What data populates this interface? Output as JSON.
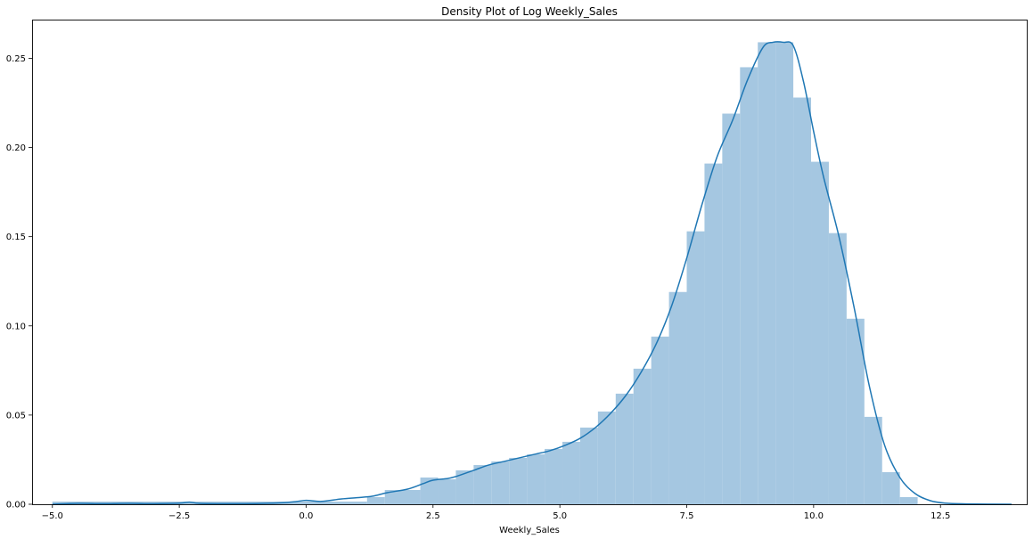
{
  "chart_data": {
    "type": "bar",
    "title": "Density Plot of Log Weekly_Sales",
    "xlabel": "Weekly_Sales",
    "ylabel": "",
    "xlim": [
      -5.4,
      14.2
    ],
    "ylim": [
      0,
      0.2717
    ],
    "x_ticks": [
      -5.0,
      -2.5,
      0.0,
      2.5,
      5.0,
      7.5,
      10.0,
      12.5
    ],
    "x_tick_labels": [
      "−5.0",
      "−2.5",
      "0.0",
      "2.5",
      "5.0",
      "7.5",
      "10.0",
      "12.5"
    ],
    "y_ticks": [
      0.0,
      0.05,
      0.1,
      0.15,
      0.2,
      0.25
    ],
    "y_tick_labels": [
      "0.00",
      "0.05",
      "0.10",
      "0.15",
      "0.20",
      "0.25"
    ],
    "grid": false,
    "legend": "none",
    "histogram": {
      "color": "#a5c7e1",
      "bin_edges": [
        -5.0,
        -4.818,
        -4.636,
        -4.454,
        -4.272,
        -4.09,
        -3.908,
        -3.726,
        -3.544,
        -3.362,
        -3.18,
        -2.998,
        -2.816,
        -2.634,
        -2.452,
        -2.27,
        -2.088,
        -1.906,
        -1.724,
        -1.542,
        -1.36,
        -1.178,
        -0.996,
        -0.814,
        -0.632,
        -0.45,
        -0.268,
        -0.086,
        0.096,
        0.278,
        0.46,
        0.642,
        0.824,
        1.006,
        1.188,
        1.37,
        1.552,
        1.734,
        1.916,
        2.098,
        2.28,
        2.462,
        2.644,
        2.826,
        3.008,
        3.19,
        3.372,
        3.554,
        3.736,
        3.918,
        4.1,
        4.282,
        4.464,
        4.646,
        4.828,
        5.01,
        5.192,
        5.374,
        5.556,
        5.738,
        5.92,
        6.102,
        6.284,
        6.466,
        6.648,
        6.83,
        7.012,
        7.194,
        7.376,
        7.558,
        7.74,
        7.922,
        8.104,
        8.286,
        8.468,
        8.65,
        8.832,
        9.014,
        9.196,
        9.378,
        9.56,
        9.742,
        9.924,
        10.106,
        10.288,
        10.47,
        10.652,
        10.834,
        11.016,
        11.198,
        11.38,
        11.562,
        11.744,
        11.926,
        12.108,
        12.29,
        12.472,
        12.654,
        12.836,
        13.018,
        13.2,
        13.382,
        13.564,
        13.746,
        13.928
      ],
      "bins": [
        {
          "x0": -5.0,
          "x1": 1.2,
          "y": 0.0015
        },
        {
          "x0": 1.2,
          "x1": 1.55,
          "y": 0.004
        },
        {
          "x0": 1.55,
          "x1": 2.25,
          "y": 0.008
        },
        {
          "x0": 2.25,
          "x1": 2.6,
          "y": 0.015
        },
        {
          "x0": 2.6,
          "x1": 2.95,
          "y": 0.014
        },
        {
          "x0": 2.95,
          "x1": 3.3,
          "y": 0.019
        },
        {
          "x0": 3.3,
          "x1": 3.65,
          "y": 0.022
        },
        {
          "x0": 3.65,
          "x1": 4.0,
          "y": 0.024
        },
        {
          "x0": 4.0,
          "x1": 4.35,
          "y": 0.026
        },
        {
          "x0": 4.35,
          "x1": 4.7,
          "y": 0.028
        },
        {
          "x0": 4.7,
          "x1": 5.05,
          "y": 0.031
        },
        {
          "x0": 5.05,
          "x1": 5.4,
          "y": 0.035
        },
        {
          "x0": 5.4,
          "x1": 5.75,
          "y": 0.043
        },
        {
          "x0": 5.75,
          "x1": 6.1,
          "y": 0.052
        },
        {
          "x0": 6.1,
          "x1": 6.45,
          "y": 0.062
        },
        {
          "x0": 6.45,
          "x1": 6.8,
          "y": 0.076
        },
        {
          "x0": 6.8,
          "x1": 7.15,
          "y": 0.094
        },
        {
          "x0": 7.15,
          "x1": 7.5,
          "y": 0.119
        },
        {
          "x0": 7.5,
          "x1": 7.85,
          "y": 0.153
        },
        {
          "x0": 7.85,
          "x1": 8.2,
          "y": 0.191
        },
        {
          "x0": 8.2,
          "x1": 8.55,
          "y": 0.219
        },
        {
          "x0": 8.55,
          "x1": 8.9,
          "y": 0.245
        },
        {
          "x0": 8.9,
          "x1": 9.25,
          "y": 0.259
        },
        {
          "x0": 9.25,
          "x1": 9.6,
          "y": 0.259
        },
        {
          "x0": 9.6,
          "x1": 9.95,
          "y": 0.228
        },
        {
          "x0": 9.95,
          "x1": 10.3,
          "y": 0.192
        },
        {
          "x0": 10.3,
          "x1": 10.65,
          "y": 0.152
        },
        {
          "x0": 10.65,
          "x1": 11.0,
          "y": 0.104
        },
        {
          "x0": 11.0,
          "x1": 11.35,
          "y": 0.049
        },
        {
          "x0": 11.35,
          "x1": 11.7,
          "y": 0.018
        },
        {
          "x0": 11.7,
          "x1": 12.05,
          "y": 0.004
        }
      ]
    },
    "kde": {
      "color": "#1f77b4",
      "x": [
        -5.0,
        -4.5,
        -4.0,
        -3.5,
        -3.0,
        -2.5,
        -2.3,
        -2.1,
        -1.5,
        -1.0,
        -0.5,
        -0.2,
        0.0,
        0.3,
        0.7,
        1.0,
        1.3,
        1.6,
        2.0,
        2.3,
        2.5,
        2.8,
        3.0,
        3.3,
        3.6,
        3.9,
        4.2,
        4.5,
        4.8,
        5.1,
        5.4,
        5.7,
        6.0,
        6.3,
        6.6,
        6.9,
        7.2,
        7.5,
        7.8,
        8.1,
        8.4,
        8.7,
        9.0,
        9.2,
        9.4,
        9.6,
        9.8,
        10.0,
        10.2,
        10.5,
        10.8,
        11.1,
        11.4,
        11.7,
        12.0,
        12.3,
        12.6,
        13.0,
        13.9
      ],
      "y": [
        0.0,
        0.0005,
        0.0003,
        0.0005,
        0.0003,
        0.0006,
        0.0012,
        0.0005,
        0.0003,
        0.0004,
        0.0008,
        0.0015,
        0.0022,
        0.0016,
        0.003,
        0.0037,
        0.0045,
        0.0065,
        0.0085,
        0.0115,
        0.0135,
        0.0145,
        0.016,
        0.019,
        0.022,
        0.024,
        0.026,
        0.028,
        0.03,
        0.033,
        0.037,
        0.043,
        0.051,
        0.061,
        0.074,
        0.09,
        0.111,
        0.138,
        0.168,
        0.195,
        0.215,
        0.238,
        0.256,
        0.259,
        0.259,
        0.257,
        0.237,
        0.209,
        0.183,
        0.15,
        0.11,
        0.066,
        0.033,
        0.015,
        0.006,
        0.002,
        0.0006,
        0.0002,
        0.0
      ]
    }
  }
}
